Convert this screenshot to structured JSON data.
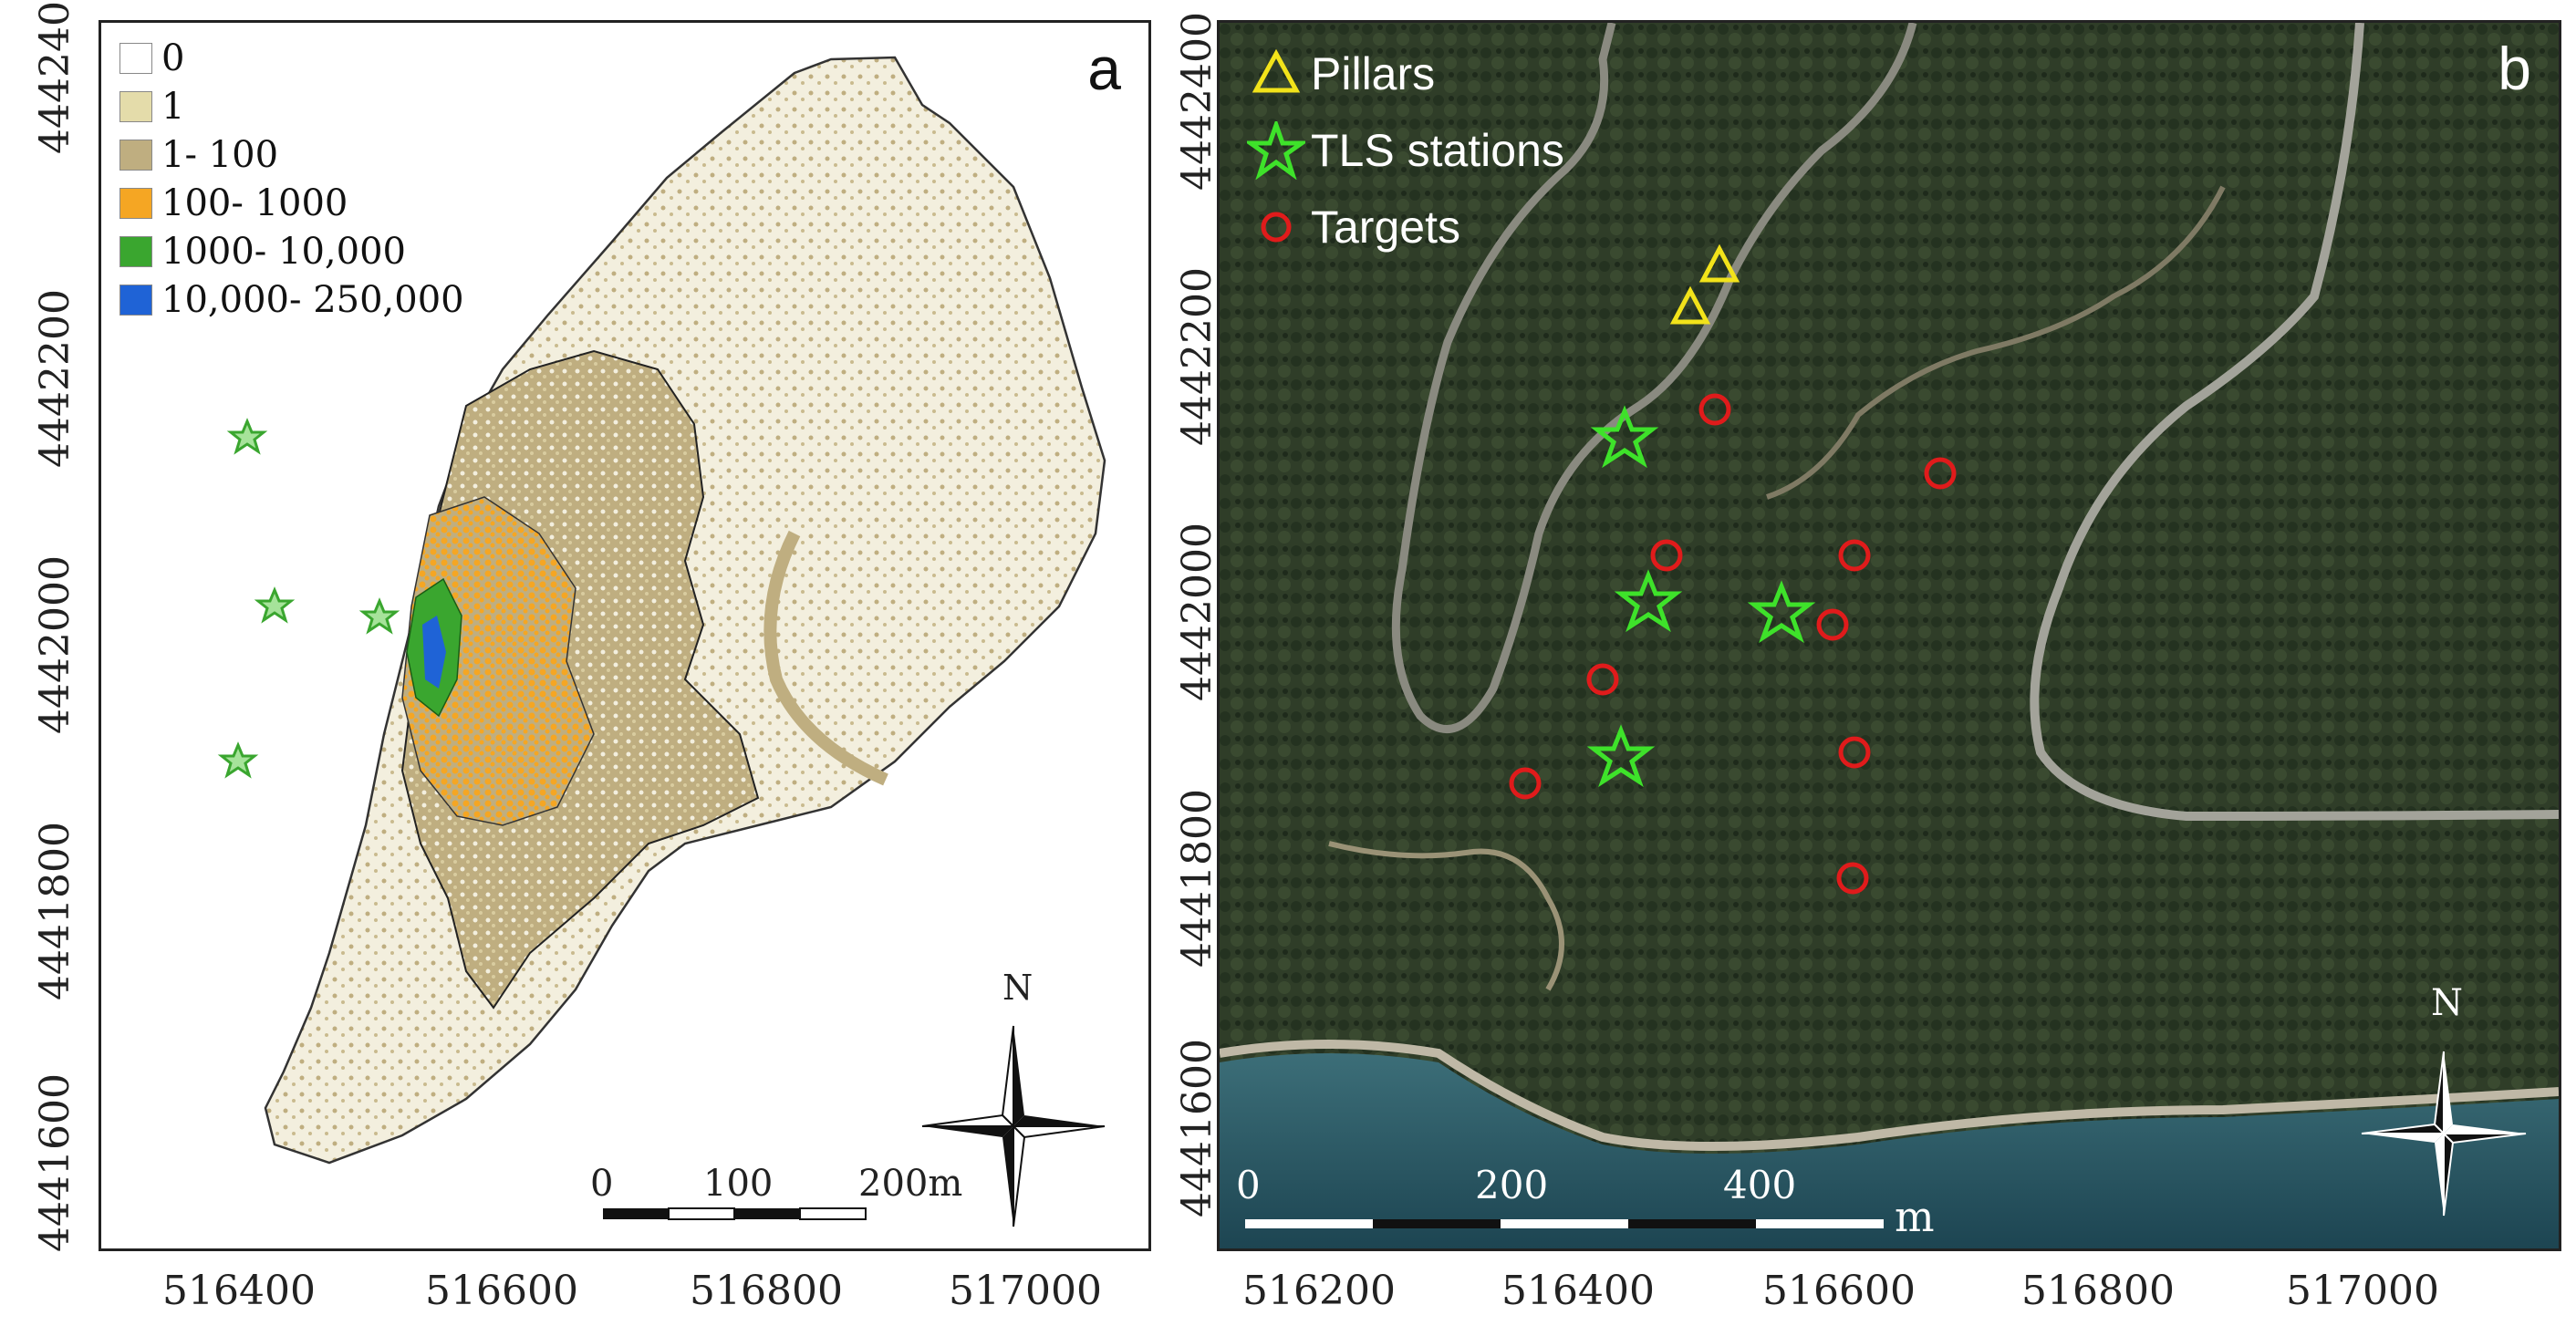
{
  "panel_a": {
    "letter": "a",
    "legend": [
      {
        "label": "0",
        "color": "#ffffff"
      },
      {
        "label": "1",
        "color": "#e4dcaa"
      },
      {
        "label": "1- 100",
        "color": "#bfae80"
      },
      {
        "label": "100- 1000",
        "color": "#f5a623"
      },
      {
        "label": "1000- 10,000",
        "color": "#3aa62f"
      },
      {
        "label": "10,000- 250,000",
        "color": "#1f63d6"
      }
    ],
    "x_ticks": [
      "516400",
      "516600",
      "516800",
      "517000"
    ],
    "y_ticks": [
      "4442400",
      "4442200",
      "4442000",
      "4441800",
      "4441600"
    ],
    "scale_bar": {
      "labels": [
        "0",
        "100",
        "200m"
      ]
    },
    "north_label": "N"
  },
  "panel_b": {
    "letter": "b",
    "legend": [
      {
        "label": "Pillars",
        "symbol": "triangle-icon",
        "color": "#f2e31a"
      },
      {
        "label": "TLS stations",
        "symbol": "star-icon",
        "color": "#3ee22a"
      },
      {
        "label": "Targets",
        "symbol": "circle-icon",
        "color": "#e01b1b"
      }
    ],
    "x_ticks": [
      "516200",
      "516400",
      "516600",
      "516800",
      "517000"
    ],
    "y_ticks": [
      "4442400",
      "4442200",
      "4442000",
      "4441800",
      "4441600"
    ],
    "scale_bar": {
      "labels": [
        "0",
        "200",
        "400"
      ],
      "unit": "m"
    },
    "north_label": "N"
  }
}
